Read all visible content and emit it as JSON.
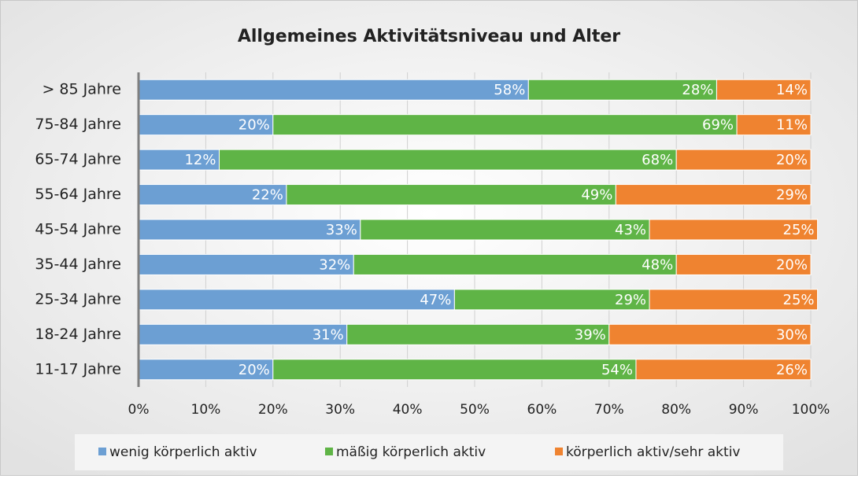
{
  "chart_data": {
    "type": "stacked-bar-horizontal",
    "title": "Allgemeines Aktivitätsniveau und Alter",
    "categories": [
      "> 85 Jahre",
      "75-84 Jahre",
      "65-74 Jahre",
      "55-64 Jahre",
      "45-54 Jahre",
      "35-44 Jahre",
      "25-34 Jahre",
      "18-24 Jahre",
      "11-17 Jahre"
    ],
    "series": [
      {
        "name": "wenig körperlich aktiv",
        "color": "#6c9fd3",
        "values": [
          58,
          20,
          12,
          22,
          33,
          32,
          47,
          31,
          20
        ],
        "value_labels": [
          "58%",
          "20%",
          "12%",
          "22%",
          "33%",
          "32%",
          "47%",
          "31%",
          "20%"
        ]
      },
      {
        "name": "mäßig körperlich aktiv",
        "color": "#5fb446",
        "values": [
          28,
          69,
          68,
          49,
          43,
          48,
          29,
          39,
          54
        ],
        "value_labels": [
          "28%",
          "69%",
          "68%",
          "49%",
          "43%",
          "48%",
          "29%",
          "39%",
          "54%"
        ]
      },
      {
        "name": "körperlich aktiv/sehr aktiv",
        "color": "#ef8330",
        "values": [
          14,
          11,
          20,
          29,
          25,
          20,
          25,
          30,
          26
        ],
        "value_labels": [
          "14%",
          "11%",
          "20%",
          "29%",
          "25%",
          "20%",
          "25%",
          "30%",
          "26%"
        ]
      }
    ],
    "xlim": [
      0,
      100
    ],
    "xticks": [
      {
        "value": 0,
        "label": "0%"
      },
      {
        "value": 10,
        "label": "10%"
      },
      {
        "value": 20,
        "label": "20%"
      },
      {
        "value": 30,
        "label": "30%"
      },
      {
        "value": 40,
        "label": "40%"
      },
      {
        "value": 50,
        "label": "50%"
      },
      {
        "value": 60,
        "label": "60%"
      },
      {
        "value": 70,
        "label": "70%"
      },
      {
        "value": 80,
        "label": "80%"
      },
      {
        "value": 90,
        "label": "90%"
      },
      {
        "value": 100,
        "label": "100%"
      }
    ],
    "grid": true,
    "legend": "bottom"
  }
}
